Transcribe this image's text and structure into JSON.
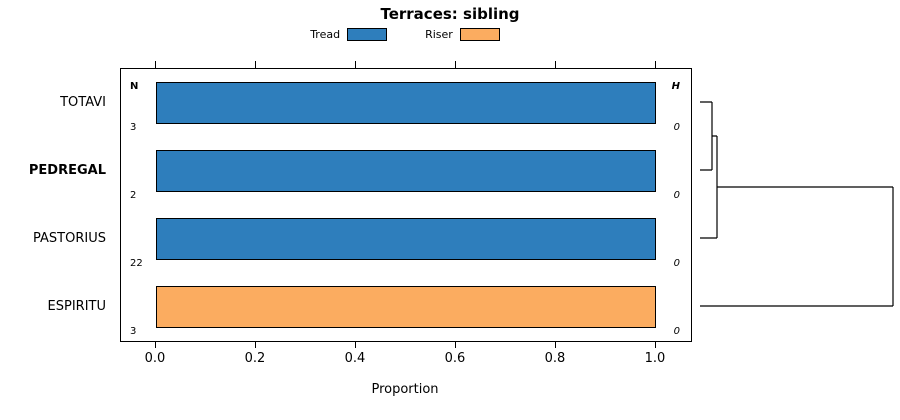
{
  "title": "Terraces: sibling",
  "xlabel": "Proportion",
  "x_ticks": [
    "0.0",
    "0.2",
    "0.4",
    "0.6",
    "0.8",
    "1.0"
  ],
  "columns": {
    "n_header": "N",
    "h_header": "H"
  },
  "legend": [
    {
      "label": "Tread",
      "color": "#2e7ebc"
    },
    {
      "label": "Riser",
      "color": "#fbac60"
    }
  ],
  "chart_data": {
    "type": "bar",
    "orientation": "horizontal",
    "stacked": true,
    "title": "Terraces: sibling",
    "xlabel": "Proportion",
    "xlim": [
      0.0,
      1.0
    ],
    "grid": false,
    "legend_position": "top",
    "categories": [
      "TOTAVI",
      "PEDREGAL",
      "PASTORIUS",
      "ESPIRITU"
    ],
    "emphasized": [
      "PEDREGAL"
    ],
    "n": [
      3,
      2,
      22,
      3
    ],
    "h": [
      0,
      0,
      0,
      0
    ],
    "series": [
      {
        "name": "Tread",
        "color": "#2e7ebc",
        "values": [
          1.0,
          1.0,
          1.0,
          0.0
        ]
      },
      {
        "name": "Riser",
        "color": "#fbac60",
        "values": [
          0.0,
          0.0,
          0.0,
          1.0
        ]
      }
    ],
    "dendrogram": {
      "side": "right",
      "merge_order": [
        [
          "TOTAVI",
          "PEDREGAL"
        ],
        [
          "TOTAVI+PEDREGAL",
          "PASTORIUS"
        ],
        [
          "TOTAVI+PEDREGAL+PASTORIUS",
          "ESPIRITU"
        ]
      ],
      "note": "ESPIRITU joins last at the largest height"
    }
  }
}
